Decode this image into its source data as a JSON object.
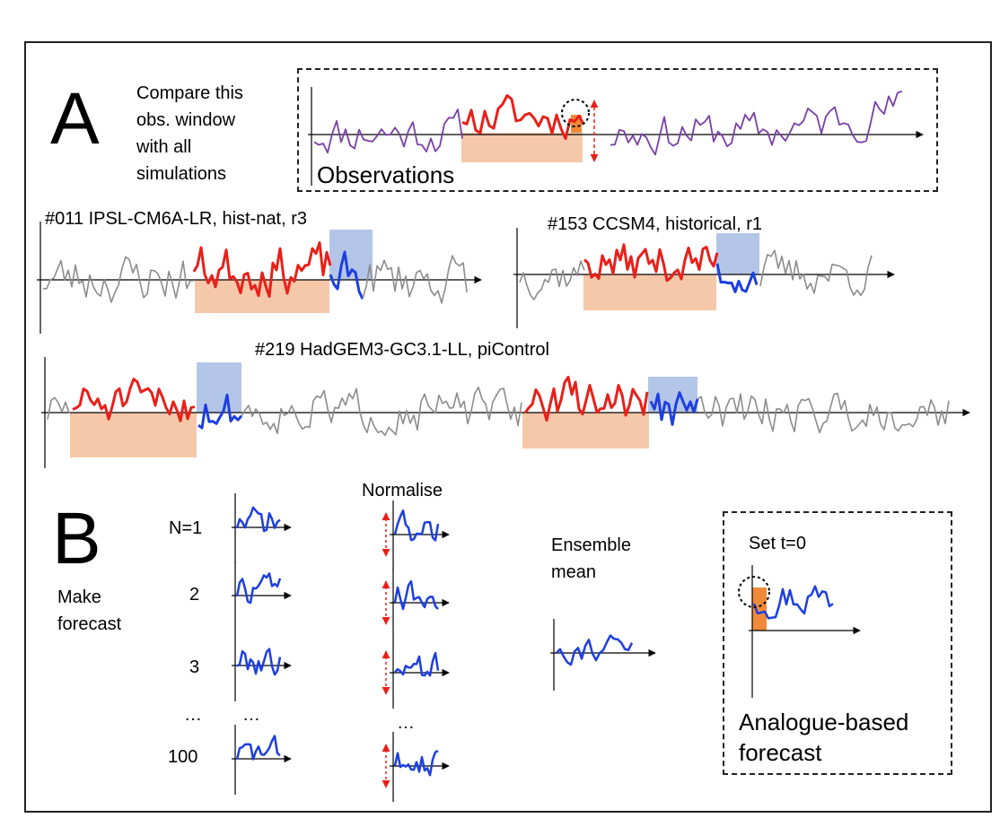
{
  "panel_a": {
    "letter": "A",
    "instruction_lines": [
      "Compare this",
      "obs. window",
      "with all",
      "simulations"
    ],
    "observations_label": "Observations",
    "sim1_label": "#011 IPSL-CM6A-LR, hist-nat, r3",
    "sim2_label": "#153 CCSM4, historical, r1",
    "sim3_label": "#219 HadGEM3-GC3.1-LL, piControl"
  },
  "panel_b": {
    "letter": "B",
    "make_forecast_lines": [
      "Make",
      "forecast"
    ],
    "row_labels": [
      "N=1",
      "2",
      "3",
      "…",
      "100"
    ],
    "ellipsis_mid": "…",
    "ellipsis_norm": "…",
    "normalise_label": "Normalise",
    "ensemble_lines": [
      "Ensemble",
      "mean"
    ],
    "set_t0_label": "Set t=0",
    "result_lines": [
      "Analogue-based",
      "forecast"
    ]
  },
  "colors": {
    "observations_line": "#7a3fa6",
    "simulation_line": "#8c8c8c",
    "matched_window": "#e8201a",
    "forecast_line": "#1d3fe0",
    "match_fill": "#f6c8aa",
    "forecast_fill": "#b4c6e8",
    "t0_fill": "#f08a3a",
    "normalise_arrow": "#e8201a"
  }
}
